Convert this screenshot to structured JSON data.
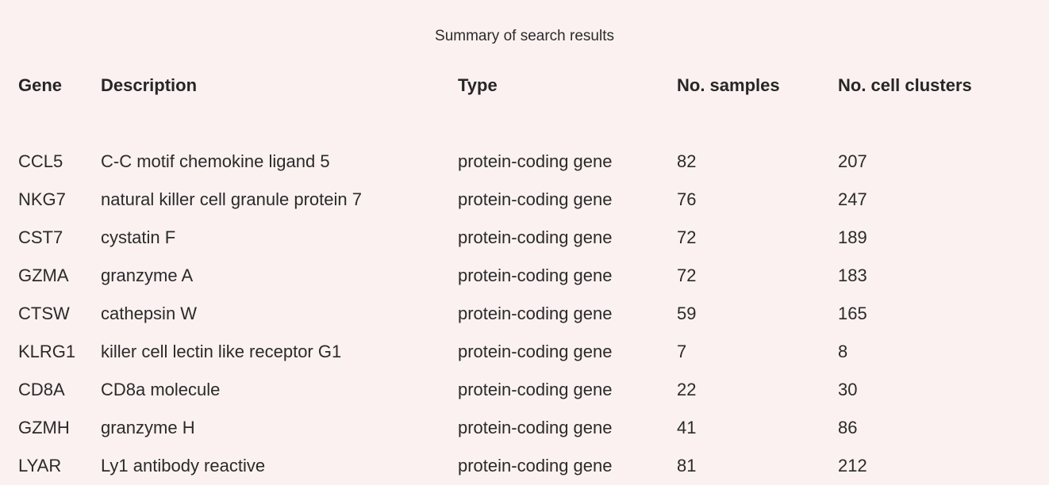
{
  "caption": "Summary of search results",
  "table": {
    "columns": [
      "Gene",
      "Description",
      "Type",
      "No. samples",
      "No. cell clusters"
    ],
    "rows": [
      [
        "CCL5",
        "C-C motif chemokine ligand 5",
        "protein-coding gene",
        "82",
        "207"
      ],
      [
        "NKG7",
        "natural killer cell granule protein 7",
        "protein-coding gene",
        "76",
        "247"
      ],
      [
        "CST7",
        "cystatin F",
        "protein-coding gene",
        "72",
        "189"
      ],
      [
        "GZMA",
        "granzyme A",
        "protein-coding gene",
        "72",
        "183"
      ],
      [
        "CTSW",
        "cathepsin W",
        "protein-coding gene",
        "59",
        "165"
      ],
      [
        "KLRG1",
        "killer cell lectin like receptor G1",
        "protein-coding gene",
        "7",
        "8"
      ],
      [
        "CD8A",
        "CD8a molecule",
        "protein-coding gene",
        "22",
        "30"
      ],
      [
        "GZMH",
        "granzyme H",
        "protein-coding gene",
        "41",
        "86"
      ],
      [
        "LYAR",
        "Ly1 antibody reactive",
        "protein-coding gene",
        "81",
        "212"
      ]
    ]
  }
}
